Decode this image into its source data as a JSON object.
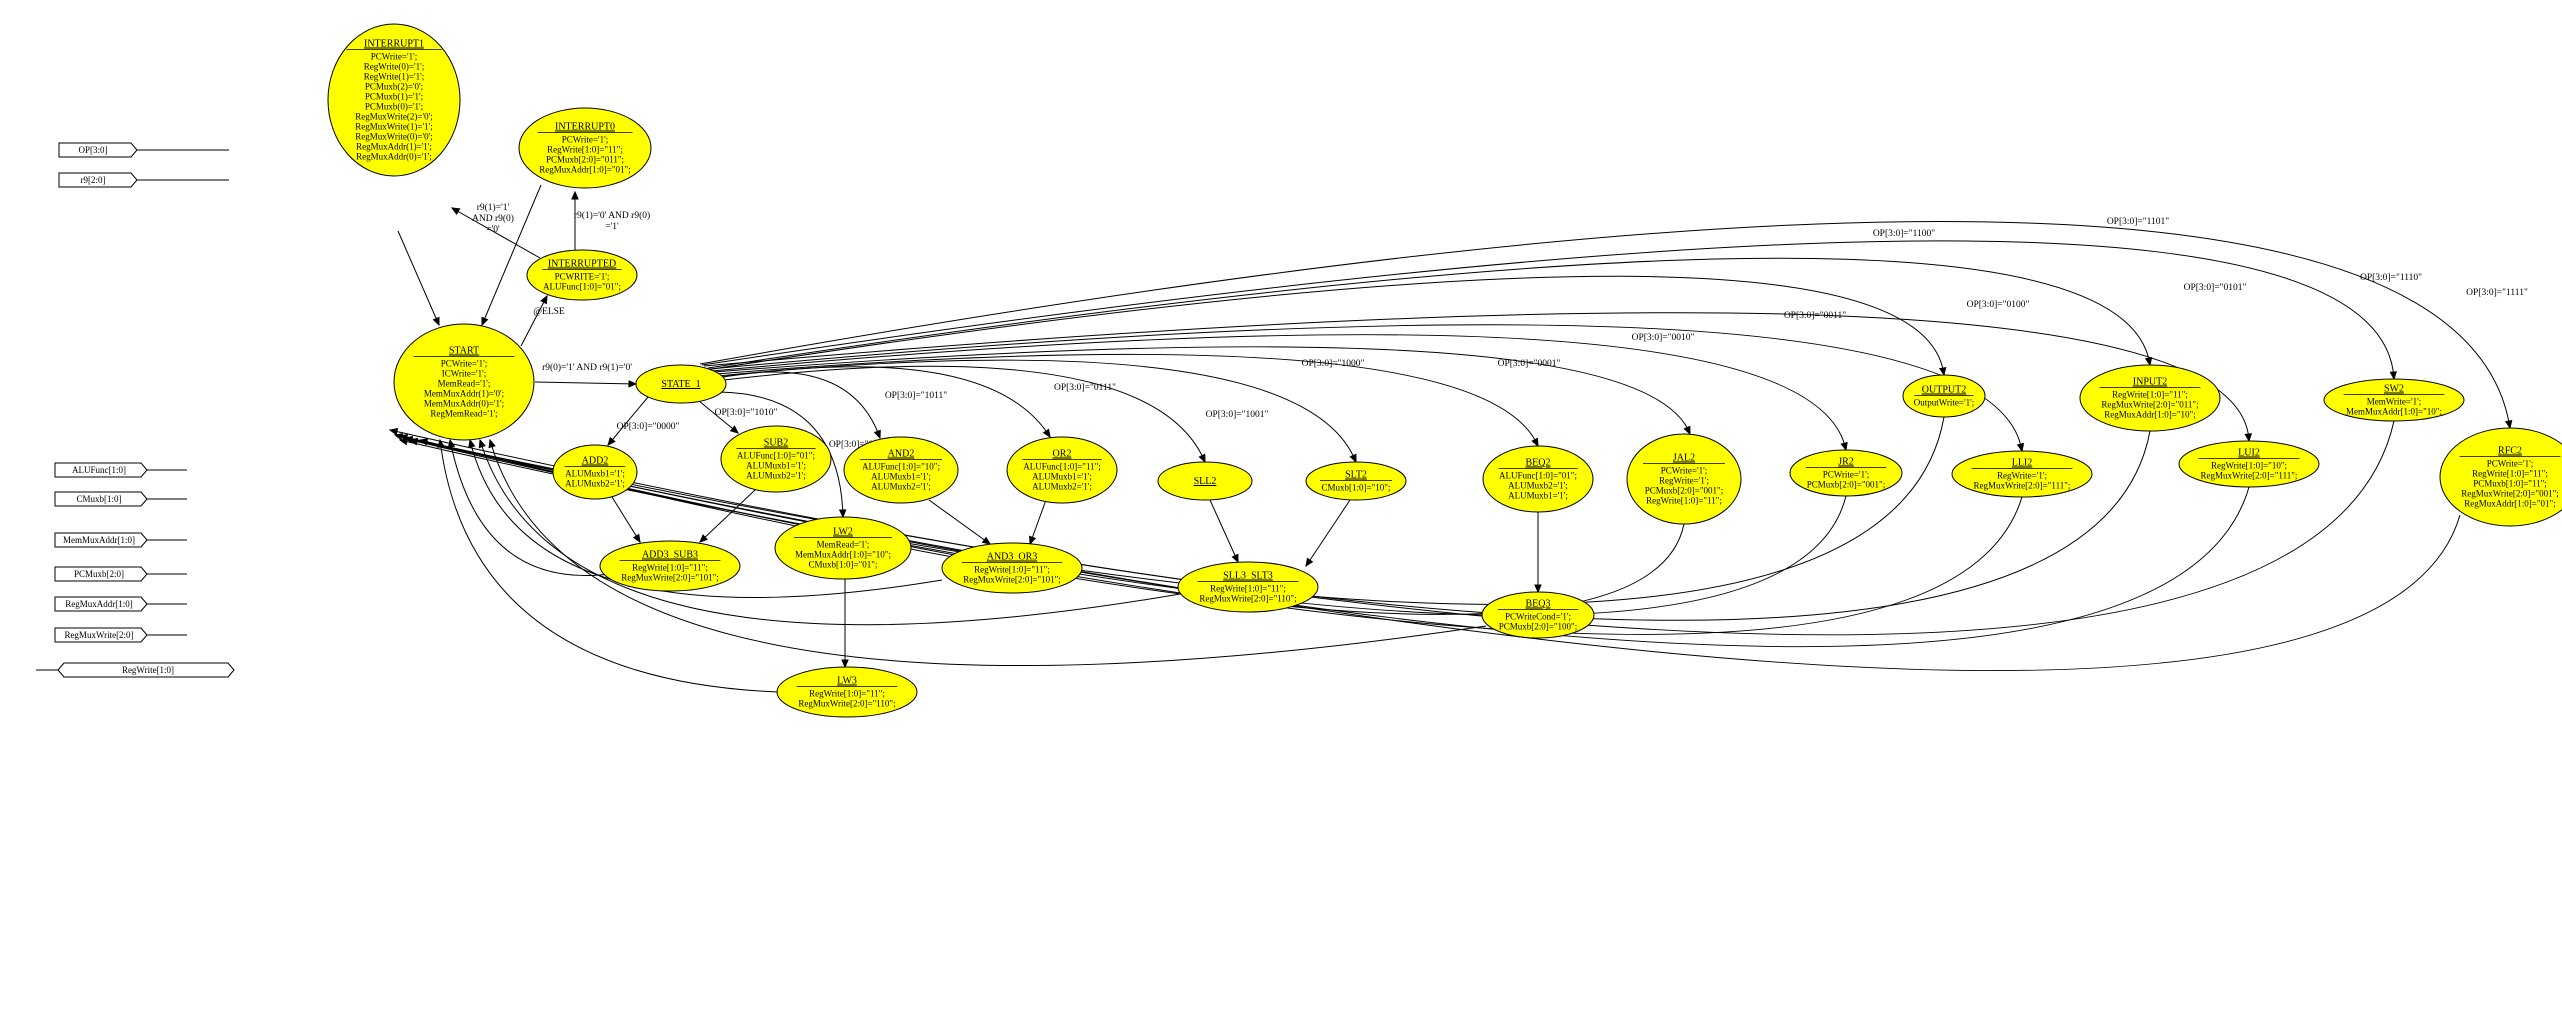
{
  "ports": [
    {
      "id": "p_op",
      "label": "OP[3:0]",
      "dir": "in"
    },
    {
      "id": "p_r9",
      "label": "r9[2:0]",
      "dir": "in"
    },
    {
      "id": "p_alufunc",
      "label": "ALUFunc[1:0]",
      "dir": "out"
    },
    {
      "id": "p_cmuxb",
      "label": "CMuxb[1:0]",
      "dir": "out"
    },
    {
      "id": "p_memmux",
      "label": "MemMuxAddr[1:0]",
      "dir": "out"
    },
    {
      "id": "p_pcmuxb",
      "label": "PCMuxb[2:0]",
      "dir": "out"
    },
    {
      "id": "p_regmuxaddr",
      "label": "RegMuxAddr[1:0]",
      "dir": "out"
    },
    {
      "id": "p_regmuxwrite",
      "label": "RegMuxWrite[2:0]",
      "dir": "out"
    },
    {
      "id": "p_regwrite",
      "label": "RegWrite[1:0]",
      "dir": "inout"
    }
  ],
  "states": [
    {
      "id": "INTERRUPT1",
      "name": "INTERRUPT1",
      "lines": [
        "PCWrite='1';",
        "RegWrite(0)='1';",
        "RegWrite(1)='1';",
        "PCMuxb(2)='0';",
        "PCMuxb(1)='1';",
        "PCMuxb(0)='1';",
        "RegMuxWrite(2)='0';",
        "RegMuxWrite(1)='1';",
        "RegMuxWrite(0)='0';",
        "RegMuxAddr(1)='1';",
        "RegMuxAddr(0)='1';"
      ]
    },
    {
      "id": "INTERRUPT0",
      "name": "INTERRUPT0",
      "lines": [
        "PCWrite='1';",
        "RegWrite[1:0]=\"11\";",
        "PCMuxb[2:0]=\"011\";",
        "RegMuxAddr[1:0]=\"01\";"
      ]
    },
    {
      "id": "INTERRUPTED",
      "name": "INTERRUPTED",
      "lines": [
        "PCWRITE='1';",
        "ALUFunc[1:0]=\"01\";"
      ]
    },
    {
      "id": "START",
      "name": "START",
      "lines": [
        "PCWrite='1';",
        "ICWrite='1';",
        "MemRead='1';",
        "MemMuxAddr(1)='0';",
        "MemMuxAddr(0)='1';",
        "RegMemRead='1';"
      ]
    },
    {
      "id": "STATE_1",
      "name": "STATE_1",
      "lines": []
    },
    {
      "id": "ADD2",
      "name": "ADD2",
      "lines": [
        "ALUMuxb1='1';",
        "ALUMuxb2='1';"
      ]
    },
    {
      "id": "SUB2",
      "name": "SUB2",
      "lines": [
        "ALUFunc[1:0]=\"01\";",
        "ALUMuxb1='1';",
        "ALUMuxb2='1';"
      ]
    },
    {
      "id": "AND2",
      "name": "AND2",
      "lines": [
        "ALUFunc[1:0]=\"10\";",
        "ALUMuxb1='1';",
        "ALUMuxb2='1';"
      ]
    },
    {
      "id": "OR2",
      "name": "OR2",
      "lines": [
        "ALUFunc[1:0]=\"11\";",
        "ALUMuxb1='1';",
        "ALUMuxb2='1';"
      ]
    },
    {
      "id": "SLL2",
      "name": "SLL2",
      "lines": []
    },
    {
      "id": "SLT2",
      "name": "SLT2",
      "lines": [
        "CMuxb[1:0]=\"10\";"
      ]
    },
    {
      "id": "BEQ2",
      "name": "BEQ2",
      "lines": [
        "ALUFunc[1:0]=\"01\";",
        "ALUMuxb2='1';",
        "ALUMuxb1='1';"
      ]
    },
    {
      "id": "JAL2",
      "name": "JAL2",
      "lines": [
        "PCWrite='1';",
        "RegWrite='1';",
        "PCMuxb[2:0]=\"001\";",
        "RegWrite[1:0]=\"11\";"
      ]
    },
    {
      "id": "JR2",
      "name": "JR2",
      "lines": [
        "PCWrite='1';",
        "PCMuxb[2:0]=\"001\";"
      ]
    },
    {
      "id": "OUTPUT2",
      "name": "OUTPUT2",
      "lines": [
        "OutputWrite='1';"
      ]
    },
    {
      "id": "LLI2",
      "name": "LLI2",
      "lines": [
        "RegWrite='1';",
        "RegMuxWrite[2:0]=\"111\";"
      ]
    },
    {
      "id": "INPUT2",
      "name": "INPUT2",
      "lines": [
        "RegWrite[1:0]=\"11\";",
        "RegMuxWrite[2:0]=\"011\";",
        "RegMuxAddr[1:0]=\"10\";"
      ]
    },
    {
      "id": "LUI2",
      "name": "LUI2",
      "lines": [
        "RegWrite[1:0]=\"10\";",
        "RegMuxWrite[2:0]=\"111\";"
      ]
    },
    {
      "id": "SW2",
      "name": "SW2",
      "lines": [
        "MemWrite='1';",
        "MemMuxAddr[1:0]=\"10\";"
      ]
    },
    {
      "id": "RFC2",
      "name": "RFC2",
      "lines": [
        "PCWrite='1';",
        "RegWrite[1:0]=\"11\";",
        "PCMuxb[1:0]=\"11\";",
        "RegMuxWrite[2:0]=\"001\";",
        "RegMuxAddr[1:0]=\"01\";"
      ]
    },
    {
      "id": "ADD3_SUB3",
      "name": "ADD3_SUB3",
      "lines": [
        "RegWrite[1:0]=\"11\";",
        "RegMuxWrite[2:0]=\"101\";"
      ]
    },
    {
      "id": "LW2",
      "name": "LW2",
      "lines": [
        "MemRead='1';",
        "MemMuxAddr[1:0]=\"10\";",
        "CMuxb[1:0]=\"01\";"
      ]
    },
    {
      "id": "AND3_OR3",
      "name": "AND3_OR3",
      "lines": [
        "RegWrite[1:0]=\"11\";",
        "RegMuxWrite[2:0]=\"101\";"
      ]
    },
    {
      "id": "SLL3_SLT3",
      "name": "SLL3_SLT3",
      "lines": [
        "RegWrite[1:0]=\"11\";",
        "RegMuxWrite[2:0]=\"110\";"
      ]
    },
    {
      "id": "BEQ3",
      "name": "BEQ3",
      "lines": [
        "PCWriteCond='1';",
        "PCMuxb[2:0]=\"100\";"
      ]
    },
    {
      "id": "LW3",
      "name": "LW3",
      "lines": [
        "RegWrite[1:0]=\"11\";",
        "RegMuxWrite[2:0]=\"110\";"
      ]
    }
  ],
  "edges": [
    {
      "id": "e_int1_start",
      "label": ""
    },
    {
      "id": "e_int0_start",
      "label": ""
    },
    {
      "id": "e_intd_int1",
      "label": "r9(1)='1' AND r9(0) ='0'"
    },
    {
      "id": "e_intd_int0",
      "label": "r9(1)='0' AND r9(0) ='1'"
    },
    {
      "id": "e_start_intd",
      "label": "@ELSE"
    },
    {
      "id": "e_start_s1",
      "label": "r9(0)='1' AND r9(1)='0'"
    },
    {
      "id": "e_s1_add2",
      "label": "OP[3:0]=\"0000\""
    },
    {
      "id": "e_s1_sub2",
      "label": "OP[3:0]=\"1010\""
    },
    {
      "id": "e_s1_and2",
      "label": "OP[3:0]=\"1011\""
    },
    {
      "id": "e_s1_or2",
      "label": "OP[3:0]=\"0111\""
    },
    {
      "id": "e_s1_lw2",
      "label": "OP[3:0]=\"0110\""
    },
    {
      "id": "e_s1_sll2",
      "label": "OP[3:0]=\"1001\""
    },
    {
      "id": "e_s1_slt2",
      "label": "OP[3:0]=\"1000\""
    },
    {
      "id": "e_s1_beq2",
      "label": "OP[3:0]=\"0001\""
    },
    {
      "id": "e_s1_jal2",
      "label": "OP[3:0]=\"0010\""
    },
    {
      "id": "e_s1_jr2",
      "label": "OP[3:0]=\"0011\""
    },
    {
      "id": "e_s1_out2",
      "label": "OP[3:0]=\"1100\""
    },
    {
      "id": "e_s1_lli2",
      "label": "OP[3:0]=\"0100\""
    },
    {
      "id": "e_s1_in2",
      "label": "OP[3:0]=\"1101\""
    },
    {
      "id": "e_s1_lui2",
      "label": "OP[3:0]=\"0101\""
    },
    {
      "id": "e_s1_sw2",
      "label": "OP[3:0]=\"1110\""
    },
    {
      "id": "e_s1_rfc2",
      "label": "OP[3:0]=\"1111\""
    },
    {
      "id": "e_add2_as3",
      "label": ""
    },
    {
      "id": "e_sub2_as3",
      "label": ""
    },
    {
      "id": "e_and2_ao3",
      "label": ""
    },
    {
      "id": "e_or2_ao3",
      "label": ""
    },
    {
      "id": "e_sll2_ss3",
      "label": ""
    },
    {
      "id": "e_slt2_ss3",
      "label": ""
    },
    {
      "id": "e_beq2_beq3",
      "label": ""
    },
    {
      "id": "e_lw2_lw3",
      "label": ""
    },
    {
      "id": "r_as3",
      "label": ""
    },
    {
      "id": "r_ao3",
      "label": ""
    },
    {
      "id": "r_ss3",
      "label": ""
    },
    {
      "id": "r_beq3",
      "label": ""
    },
    {
      "id": "r_lw3",
      "label": ""
    },
    {
      "id": "r_jal2",
      "label": ""
    },
    {
      "id": "r_jr2",
      "label": ""
    },
    {
      "id": "r_out2",
      "label": ""
    },
    {
      "id": "r_lli2",
      "label": ""
    },
    {
      "id": "r_in2",
      "label": ""
    },
    {
      "id": "r_lui2",
      "label": ""
    },
    {
      "id": "r_sw2",
      "label": ""
    },
    {
      "id": "r_rfc2",
      "label": ""
    }
  ]
}
